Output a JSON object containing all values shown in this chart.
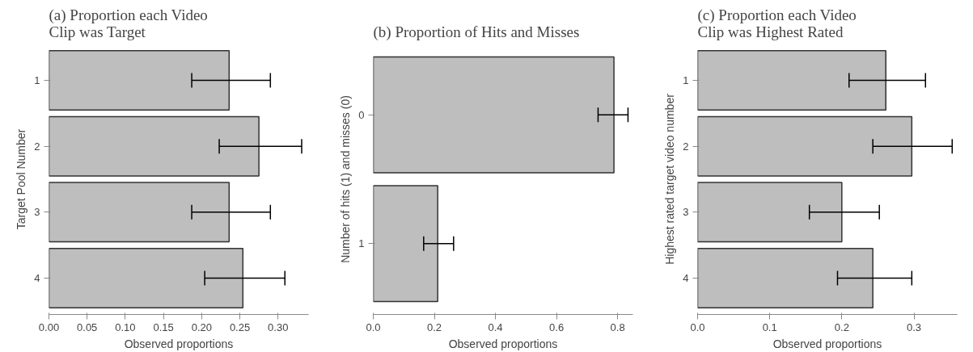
{
  "chart_data": [
    {
      "type": "bar",
      "orientation": "horizontal",
      "title": "(a) Proportion each Video\nClip was Target",
      "xlabel": "Observed proportions",
      "ylabel": "Target Pool Number",
      "categories": [
        "1",
        "2",
        "3",
        "4"
      ],
      "values": [
        0.236,
        0.275,
        0.236,
        0.254
      ],
      "errors": [
        [
          0.187,
          0.29
        ],
        [
          0.223,
          0.331
        ],
        [
          0.187,
          0.29
        ],
        [
          0.204,
          0.309
        ]
      ],
      "color": "#bebebe",
      "xlim": [
        0,
        0.34
      ],
      "xticks": [
        {
          "value": 0,
          "label": "0.00"
        },
        {
          "value": 0.05,
          "label": "0.05"
        },
        {
          "value": 0.1,
          "label": "0.10"
        },
        {
          "value": 0.15,
          "label": "0.15"
        },
        {
          "value": 0.2,
          "label": "0.20"
        },
        {
          "value": 0.25,
          "label": "0.25"
        },
        {
          "value": 0.3,
          "label": "0.30"
        }
      ],
      "grid": false
    },
    {
      "type": "bar",
      "orientation": "horizontal",
      "title": "(b) Proportion of Hits and Misses",
      "xlabel": "Observed proportions",
      "ylabel": "Number of hits (1) and misses (0)",
      "categories": [
        "0",
        "1"
      ],
      "values": [
        0.788,
        0.211
      ],
      "errors": [
        [
          0.736,
          0.834
        ],
        [
          0.165,
          0.263
        ]
      ],
      "color": "#bebebe",
      "xlim": [
        0,
        0.85
      ],
      "xticks": [
        {
          "value": 0,
          "label": "0.0"
        },
        {
          "value": 0.2,
          "label": "0.2"
        },
        {
          "value": 0.4,
          "label": "0.4"
        },
        {
          "value": 0.6,
          "label": "0.6"
        },
        {
          "value": 0.8,
          "label": "0.8"
        }
      ],
      "grid": false
    },
    {
      "type": "bar",
      "orientation": "horizontal",
      "title": "(c) Proportion each Video\nClip was Highest Rated",
      "xlabel": "Observed proportions",
      "ylabel": "Highest rated target video number",
      "categories": [
        "1",
        "2",
        "3",
        "4"
      ],
      "values": [
        0.261,
        0.297,
        0.2,
        0.243
      ],
      "errors": [
        [
          0.21,
          0.316
        ],
        [
          0.243,
          0.353
        ],
        [
          0.155,
          0.252
        ],
        [
          0.194,
          0.297
        ]
      ],
      "color": "#bebebe",
      "xlim": [
        0,
        0.36
      ],
      "xticks": [
        {
          "value": 0,
          "label": "0.0"
        },
        {
          "value": 0.1,
          "label": "0.1"
        },
        {
          "value": 0.2,
          "label": "0.2"
        },
        {
          "value": 0.3,
          "label": "0.3"
        }
      ],
      "grid": false
    }
  ]
}
